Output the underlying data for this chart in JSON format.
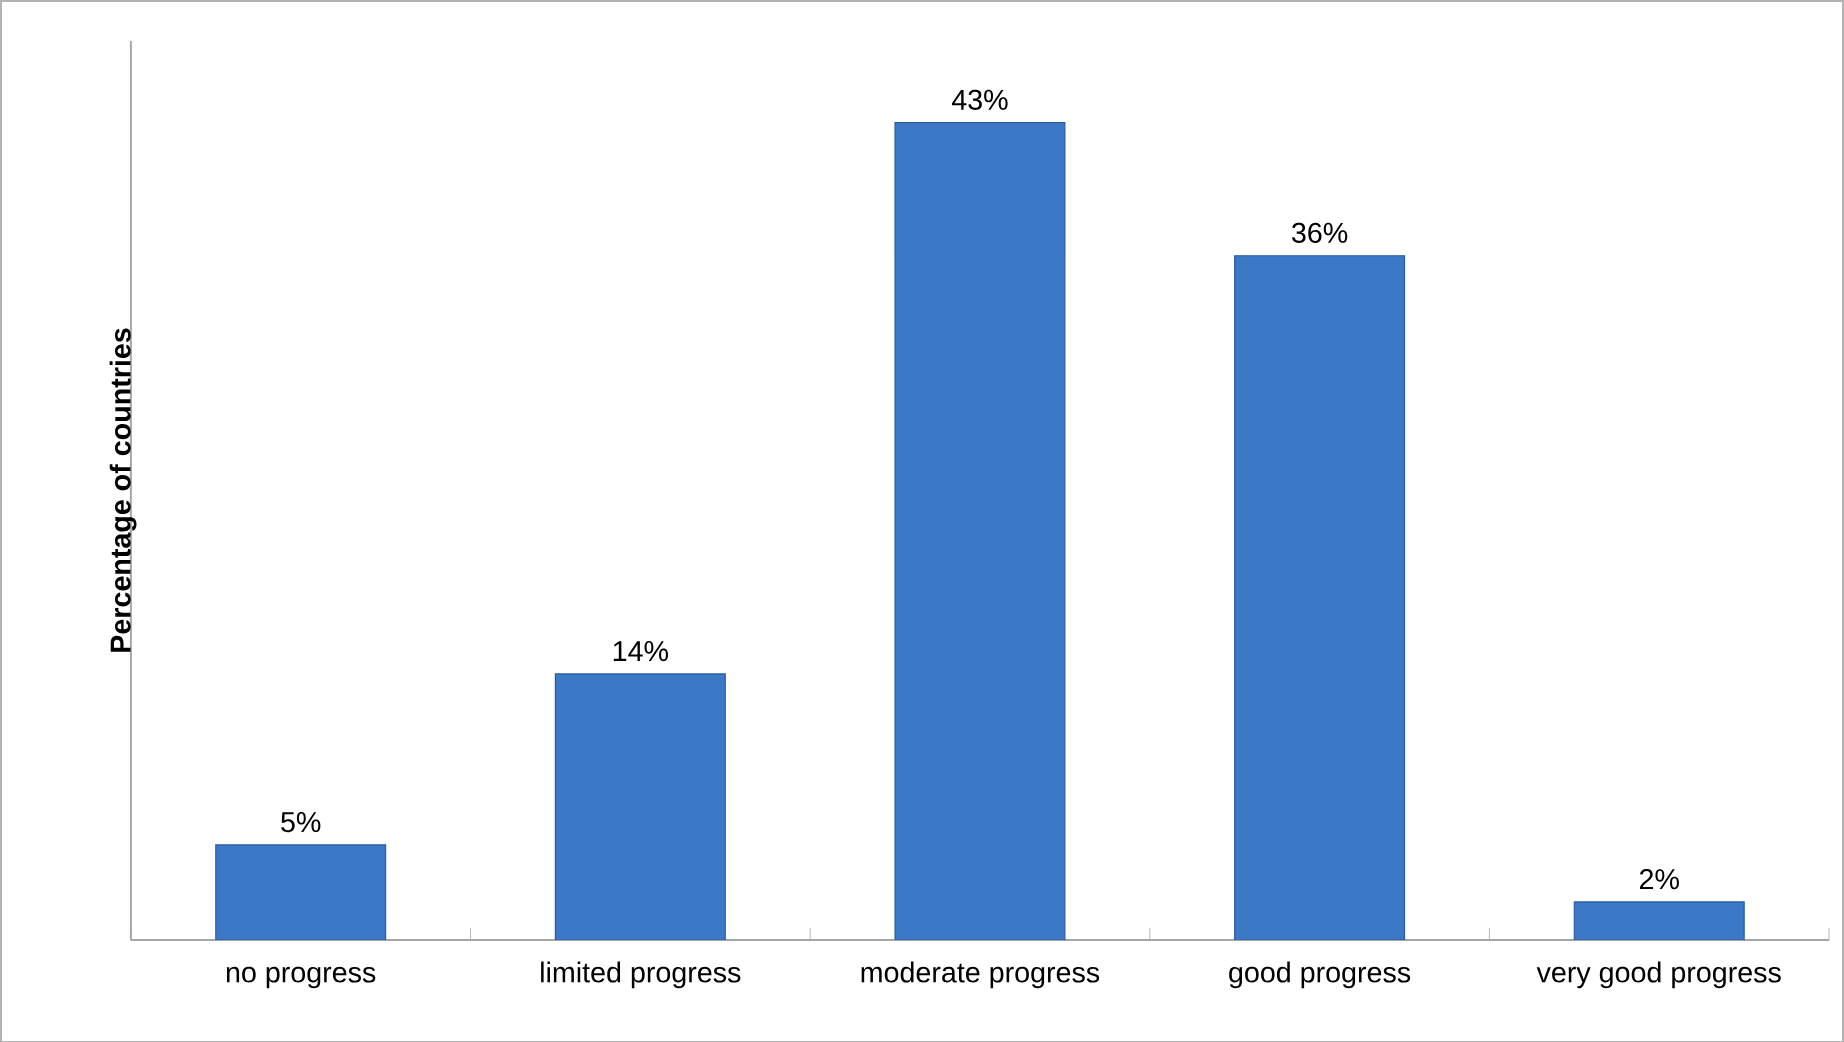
{
  "chart_data": {
    "type": "bar",
    "ylabel": "Percentage of countries",
    "categories": [
      "no progress",
      "limited progress",
      "moderate progress",
      "good progress",
      "very good progress"
    ],
    "values": [
      5,
      14,
      43,
      36,
      2
    ],
    "value_labels": [
      "5%",
      "14%",
      "43%",
      "36%",
      "2%"
    ],
    "color": "#3b78c6"
  }
}
